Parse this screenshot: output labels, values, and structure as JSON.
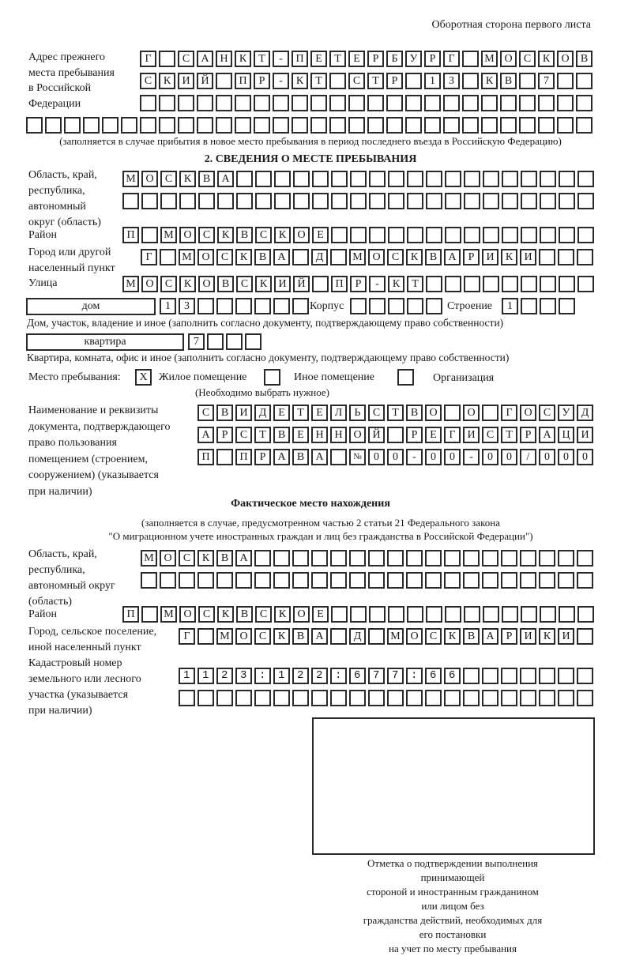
{
  "header_note": "Оборотная сторона первого листа",
  "prev_address": {
    "label": "Адрес прежнего\nместа пребывания\nв Российской\nФедерации",
    "rows": [
      "Г САНКТ-ПЕТЕРБУРГ МОСКОВ",
      "СКИЙ ПР-КТ СТР 13 КВ 7  ",
      "",
      ""
    ],
    "note": "(заполняется в случае прибытия в новое место пребывания в период последнего въезда в Российскую Федерацию)"
  },
  "section2": {
    "title": "2. СВЕДЕНИЯ О МЕСТЕ ПРЕБЫВАНИЯ",
    "region": {
      "label": "Область, край,\nреспублика,\nавтономный\nокруг (область)",
      "rows": [
        "МОСКВА",
        ""
      ]
    },
    "district": {
      "label": "Район",
      "rows": [
        "П МОСКВСКОЕ"
      ]
    },
    "city": {
      "label": "Город или другой\nнаселенный пункт",
      "rows": [
        "Г МОСКВА Д МОСКВАРИКИ"
      ]
    },
    "street": {
      "label": "Улица",
      "rows": [
        "МОСКОВСКИЙ ПР-КТ"
      ]
    },
    "house": {
      "type_value": "дом",
      "number": "13",
      "korpus_label": "Корпус",
      "korpus": "",
      "building_label": "Строение",
      "building": "1",
      "note": "Дом, участок, владение и иное (заполнить согласно документу, подтверждающему право собственности)"
    },
    "apartment": {
      "type_value": "квартира",
      "number": "7",
      "note": "Квартира, комната, офис и иное (заполнить согласно документу, подтверждающему право собственности)"
    },
    "place": {
      "label": "Место пребывания:",
      "options": [
        {
          "label": "Жилое помещение",
          "mark": "X",
          "checked": true
        },
        {
          "label": "Иное помещение",
          "mark": "",
          "checked": false
        },
        {
          "label": "Организация",
          "mark": "",
          "checked": false
        }
      ],
      "note": "(Необходимо выбрать нужное)"
    },
    "document": {
      "label": "Наименование и реквизиты\nдокумента, подтверждающего\nправо пользования\nпомещением (строением,\nсооружением) (указывается\nпри наличии)",
      "rows": [
        "СВИДЕТЕЛЬСТВО О ГОСУД",
        "АРСТВЕННОЙ РЕГИСТРАЦИ",
        "П ПРАВА №00-00-00/000"
      ]
    }
  },
  "actual": {
    "title": "Фактическое место нахождения",
    "note_lines": [
      "(заполняется в случае, предусмотренном частью 2 статьи 21 Федерального закона",
      "\"О миграционном учете иностранных граждан и лиц без гражданства в Российской Федерации\")"
    ],
    "region": {
      "label": "Область, край,\nреспублика,\nавтономный округ\n(область)",
      "rows": [
        "МОСКВА",
        ""
      ]
    },
    "district": {
      "label": "Район",
      "rows": [
        "П МОСКВСКОЕ"
      ]
    },
    "city": {
      "label": "Город, сельское поселение,\nиной населенный пункт",
      "rows": [
        "Г МОСКВА Д МОСКВАРИКИ"
      ]
    },
    "cadastral": {
      "label": "Кадастровый номер\nземельного или лесного\nучастка (указывается\nпри наличии)",
      "rows": [
        "1123:122:677:66",
        ""
      ]
    }
  },
  "stamp": {
    "caption": "Отметка о подтверждении выполнения принимающей\nстороной и иностранным гражданином или лицом без\nгражданства действий, необходимых для его постановки\nна учет по месту пребывания"
  }
}
